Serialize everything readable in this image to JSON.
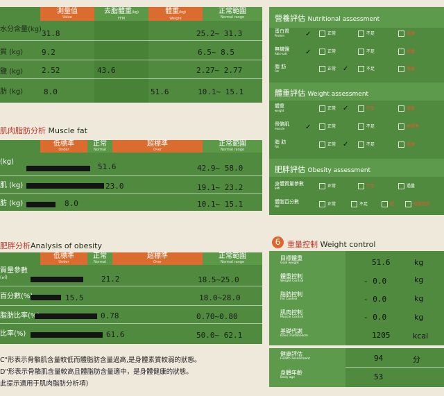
{
  "body_composition": {
    "headers": [
      {
        "zh": "測量值",
        "en": "Value"
      },
      {
        "zh": "去脂體重",
        "unit": "(kg)",
        "en": "FFM"
      },
      {
        "zh": "體重",
        "unit": "(kg)",
        "en": "Weight"
      },
      {
        "zh": "正常範圍",
        "en": "Normal range"
      }
    ],
    "rows": [
      {
        "label": "水分含量(kg)",
        "value": "31.8",
        "ffm": "",
        "weight": "",
        "range": "25.2~ 31.3"
      },
      {
        "label": "質 (kg)",
        "value": "9.2",
        "ffm": "",
        "weight": "",
        "range": "6.5~ 8.5"
      },
      {
        "label": "鹽 (kg)",
        "value": "2.52",
        "ffm": "43.6",
        "weight": "",
        "range": "2.27~ 2.77"
      },
      {
        "label": "肪 (kg)",
        "value": "8.0",
        "ffm": "",
        "weight": "51.6",
        "range": "10.1~ 15.1"
      }
    ]
  },
  "muscle_fat": {
    "title_zh": "肌肉脂肪分析",
    "title_en": "Muscle fat",
    "header_under": "低標準",
    "header_under_en": "Under",
    "header_normal": "正常",
    "header_normal_en": "Normal",
    "header_over": "超標準",
    "header_over_en": "Over",
    "header_range": "正常範圍",
    "header_range_en": "Normal range",
    "rows": [
      {
        "label": "(kg)",
        "value": "51.6",
        "range": "42.9~ 58.0"
      },
      {
        "label": "肌 (kg)",
        "value": "23.0",
        "range": "19.1~ 23.2"
      },
      {
        "label": "肪 (kg)",
        "value": "8.0",
        "range": "10.1~ 15.1"
      }
    ]
  },
  "obesity": {
    "title_zh": "肥胖分析",
    "title_en": "Analysis of obesity",
    "header_under": "低標準",
    "header_under_en": "Under",
    "header_normal": "正常",
    "header_normal_en": "Normal",
    "header_over": "超標準",
    "header_over_en": "Over",
    "header_range": "正常範圍",
    "header_range_en": "Normal range",
    "rows": [
      {
        "label": "質量參數",
        "sub": "(㎡)",
        "value": "21.2",
        "range": "18.5~25.0"
      },
      {
        "label": "百分數(%)",
        "sub": "",
        "value": "15.5",
        "range": "18.0~28.0"
      },
      {
        "label": "脂肪比率(%)",
        "sub": "",
        "value": "0.78",
        "range": "0.70~0.80"
      },
      {
        "label": "比率(%)",
        "sub": "",
        "value": "61.6",
        "range": "50.0~ 62.1"
      }
    ]
  },
  "notes": [
    "C\"形表示骨骼肌含量較低而體脂肪含量過高,是身體素質較弱的狀態。",
    "D\"形表示骨骼肌含量較高且體脂肪含量適中，是身體健康的狀態。",
    "此提示適用于肌肉脂肪分析項)"
  ],
  "assessment": {
    "nutrition_title_zh": "營養評估",
    "nutrition_title_en": "Nutritional assessment",
    "weight_title_zh": "體重評估",
    "weight_title_en": "Weight assessment",
    "obesity_title_zh": "肥胖評估",
    "obesity_title_en": "Obesity assessment",
    "nutrition_rows": [
      {
        "zh": "蛋白質",
        "en": "Protein",
        "opts": [
          "正常",
          "不足",
          "過量"
        ],
        "opts_en": [
          "Normal",
          "Deficient",
          "Excessive"
        ]
      },
      {
        "zh": "無機鹽",
        "en": "Abio-salt",
        "opts": [
          "正常",
          "不足",
          "過量"
        ],
        "opts_en": [
          "Normal",
          "Deficient",
          "Excessive"
        ]
      },
      {
        "zh": "脂 肪",
        "en": "Fat",
        "opts": [
          "正常",
          "不足",
          "過量"
        ],
        "opts_en": [
          "Normal",
          "Deficient",
          "Excessive"
        ]
      }
    ],
    "weight_rows": [
      {
        "zh": "體重",
        "en": "weight",
        "opts": [
          "正常",
          "不足",
          "過量"
        ],
        "opts_en": [
          "Normal",
          "Deficient",
          "Excessive"
        ]
      },
      {
        "zh": "骨骼肌",
        "en": "muscle",
        "opts": [
          "正常",
          "不足",
          "高標準"
        ],
        "opts_en": [
          "Normal",
          "Deficient",
          "Over"
        ]
      },
      {
        "zh": "脂 肪",
        "en": "Fat",
        "opts": [
          "正常",
          "不足",
          "過量"
        ],
        "opts_en": [
          "Normal",
          "Deficient",
          "Excessive"
        ]
      }
    ],
    "obesity_rows": [
      {
        "zh": "身體質量參數",
        "en": "BMI",
        "opts": [
          "正常",
          "不足",
          "過量"
        ],
        "opts_en": [
          "Normal",
          "Deficient",
          "Excessive"
        ]
      },
      {
        "zh": "體脂百分數",
        "en": "PBF",
        "opts": [
          "正常",
          "不足",
          "超",
          "輕度肥胖"
        ],
        "opts_en": [
          "",
          "",
          "",
          ""
        ]
      }
    ]
  },
  "weight_control": {
    "badge": "6",
    "title_zh": "重量控制",
    "title_en": "Weight control",
    "rows": [
      {
        "zh": "目標體重",
        "en": "Goal weight",
        "value": "51.6",
        "unit": "kg"
      },
      {
        "zh": "體重控制",
        "en": "Weight Control",
        "value": "- 0.0",
        "unit": "kg"
      },
      {
        "zh": "脂肪控制",
        "en": "Fat Control",
        "value": "- 0.0",
        "unit": "kg"
      },
      {
        "zh": "肌肉控制",
        "en": "Muscle Control",
        "value": "- 0.0",
        "unit": "kg"
      },
      {
        "zh": "基礎代謝",
        "en": "Basic metabolism",
        "value": "1205",
        "unit": "kcal"
      },
      {
        "zh": "健康評估",
        "en": "Health assessment",
        "value": "94",
        "unit": "分"
      },
      {
        "zh": "身體年齡",
        "en": "Body age",
        "value": "53",
        "unit": ""
      }
    ]
  },
  "colors": {
    "green": "#4f8a3e",
    "orange": "#d96c2e",
    "background": "#efe9dc",
    "accent_red": "#c0392b"
  }
}
